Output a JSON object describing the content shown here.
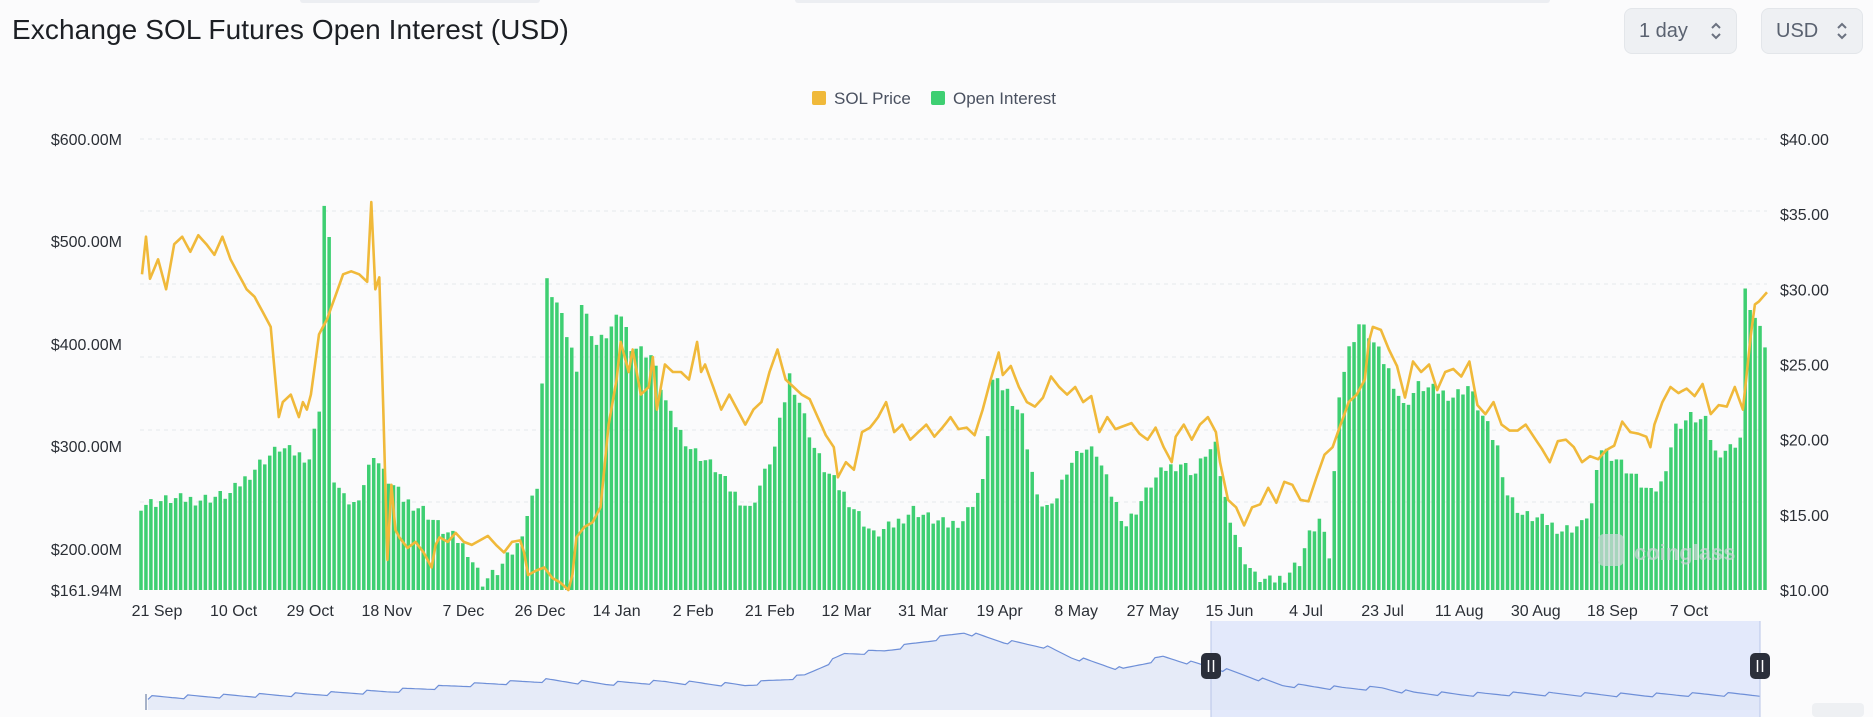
{
  "header": {
    "title": "Exchange SOL Futures Open Interest (USD)",
    "interval_select": {
      "value": "1 day"
    },
    "currency_select": {
      "value": "USD"
    }
  },
  "watermark": "coinglass",
  "colors": {
    "price": "#f0b93a",
    "open_interest": "#3ecf72",
    "grid": "#e6e8eb",
    "navigator_line": "#6e8fd8",
    "navigator_fill": "#dfe6f7",
    "navigator_selection": "#e3e9fb"
  },
  "chart_data": {
    "type": "bar+line",
    "legend": [
      "SOL Price",
      "Open Interest"
    ],
    "legend_position": "top-center",
    "grid": true,
    "x_ticks": [
      "21 Sep",
      "10 Oct",
      "29 Oct",
      "18 Nov",
      "7 Dec",
      "26 Dec",
      "14 Jan",
      "2 Feb",
      "21 Feb",
      "12 Mar",
      "31 Mar",
      "19 Apr",
      "8 May",
      "27 May",
      "15 Jun",
      "4 Jul",
      "23 Jul",
      "11 Aug",
      "30 Aug",
      "18 Sep",
      "7 Oct"
    ],
    "y_left": {
      "ticks": [
        "$600.00M",
        "$500.00M",
        "$400.00M",
        "$300.00M",
        "$200.00M",
        "$161.94M"
      ],
      "range": [
        161.94,
        600
      ]
    },
    "y_right": {
      "ticks": [
        "$40.00",
        "$35.00",
        "$30.00",
        "$25.00",
        "$20.00",
        "$15.00",
        "$10.00"
      ],
      "range": [
        10,
        40
      ]
    },
    "oi_anchors": [
      [
        0,
        245
      ],
      [
        6,
        250
      ],
      [
        12,
        250
      ],
      [
        18,
        255
      ],
      [
        24,
        285
      ],
      [
        28,
        300
      ],
      [
        31,
        295
      ],
      [
        34,
        290
      ],
      [
        36,
        340
      ],
      [
        37,
        535
      ],
      [
        38,
        500
      ],
      [
        39,
        270
      ],
      [
        41,
        250
      ],
      [
        43,
        245
      ],
      [
        45,
        265
      ],
      [
        47,
        295
      ],
      [
        49,
        275
      ],
      [
        53,
        250
      ],
      [
        57,
        240
      ],
      [
        61,
        220
      ],
      [
        64,
        210
      ],
      [
        66,
        200
      ],
      [
        69,
        170
      ],
      [
        72,
        180
      ],
      [
        76,
        205
      ],
      [
        80,
        265
      ],
      [
        82,
        460
      ],
      [
        84,
        440
      ],
      [
        88,
        380
      ],
      [
        89,
        440
      ],
      [
        92,
        400
      ],
      [
        94,
        410
      ],
      [
        97,
        430
      ],
      [
        99,
        400
      ],
      [
        103,
        390
      ],
      [
        107,
        330
      ],
      [
        111,
        300
      ],
      [
        116,
        280
      ],
      [
        119,
        260
      ],
      [
        123,
        240
      ],
      [
        126,
        275
      ],
      [
        128,
        300
      ],
      [
        131,
        370
      ],
      [
        133,
        345
      ],
      [
        136,
        300
      ],
      [
        138,
        280
      ],
      [
        142,
        255
      ],
      [
        145,
        235
      ],
      [
        148,
        215
      ],
      [
        152,
        225
      ],
      [
        156,
        240
      ],
      [
        160,
        230
      ],
      [
        163,
        225
      ],
      [
        166,
        230
      ],
      [
        170,
        265
      ],
      [
        172,
        365
      ],
      [
        175,
        355
      ],
      [
        178,
        330
      ],
      [
        181,
        250
      ],
      [
        184,
        240
      ],
      [
        187,
        280
      ],
      [
        190,
        300
      ],
      [
        193,
        295
      ],
      [
        196,
        255
      ],
      [
        199,
        225
      ],
      [
        201,
        240
      ],
      [
        204,
        265
      ],
      [
        207,
        280
      ],
      [
        210,
        285
      ],
      [
        213,
        275
      ],
      [
        215,
        295
      ],
      [
        217,
        300
      ],
      [
        219,
        250
      ],
      [
        222,
        200
      ],
      [
        225,
        175
      ],
      [
        228,
        170
      ],
      [
        231,
        175
      ],
      [
        234,
        190
      ],
      [
        236,
        215
      ],
      [
        238,
        230
      ],
      [
        240,
        195
      ],
      [
        242,
        355
      ],
      [
        244,
        395
      ],
      [
        246,
        420
      ],
      [
        248,
        410
      ],
      [
        252,
        375
      ],
      [
        255,
        340
      ],
      [
        258,
        360
      ],
      [
        262,
        355
      ],
      [
        265,
        350
      ],
      [
        268,
        360
      ],
      [
        271,
        330
      ],
      [
        274,
        300
      ],
      [
        276,
        255
      ],
      [
        279,
        235
      ],
      [
        283,
        230
      ],
      [
        287,
        220
      ],
      [
        291,
        225
      ],
      [
        293,
        245
      ],
      [
        295,
        300
      ],
      [
        298,
        290
      ],
      [
        302,
        270
      ],
      [
        305,
        255
      ],
      [
        307,
        265
      ],
      [
        310,
        320
      ],
      [
        313,
        330
      ],
      [
        316,
        325
      ],
      [
        318,
        295
      ],
      [
        321,
        300
      ],
      [
        323,
        310
      ],
      [
        324,
        450
      ],
      [
        326,
        425
      ],
      [
        328,
        400
      ]
    ],
    "price_anchors": [
      [
        0,
        31
      ],
      [
        1,
        33.5
      ],
      [
        2,
        30.7
      ],
      [
        4,
        32
      ],
      [
        6,
        30
      ],
      [
        8,
        33
      ],
      [
        10,
        33.5
      ],
      [
        12,
        32.5
      ],
      [
        14,
        33.6
      ],
      [
        16,
        33
      ],
      [
        18,
        32.3
      ],
      [
        20,
        33.5
      ],
      [
        22,
        32
      ],
      [
        24,
        31
      ],
      [
        26,
        30
      ],
      [
        28,
        29.5
      ],
      [
        30,
        28.5
      ],
      [
        32,
        27.5
      ],
      [
        34,
        21.5
      ],
      [
        35,
        22.5
      ],
      [
        37,
        23
      ],
      [
        39,
        21.5
      ],
      [
        40,
        22.5
      ],
      [
        41,
        22
      ],
      [
        42,
        23
      ],
      [
        44,
        27
      ],
      [
        46,
        28
      ],
      [
        48,
        29.5
      ],
      [
        50,
        31
      ],
      [
        52,
        31.2
      ],
      [
        54,
        31
      ],
      [
        56,
        30.5
      ],
      [
        57,
        35.8
      ],
      [
        58,
        30
      ],
      [
        59,
        30.8
      ],
      [
        60,
        22
      ],
      [
        61,
        12
      ],
      [
        62,
        17
      ],
      [
        63,
        14
      ],
      [
        64,
        13.5
      ],
      [
        66,
        12.8
      ],
      [
        68,
        13.2
      ],
      [
        70,
        12.5
      ],
      [
        72,
        11.5
      ],
      [
        73,
        13
      ],
      [
        74,
        13.5
      ],
      [
        76,
        13.2
      ],
      [
        78,
        13.8
      ],
      [
        80,
        13.2
      ],
      [
        82,
        13
      ],
      [
        84,
        13.3
      ],
      [
        86,
        13.6
      ],
      [
        88,
        13
      ],
      [
        90,
        12.5
      ],
      [
        92,
        13.2
      ],
      [
        94,
        13.3
      ],
      [
        95,
        12.5
      ],
      [
        96,
        11
      ],
      [
        98,
        11.3
      ],
      [
        100,
        11.5
      ],
      [
        102,
        10.8
      ],
      [
        104,
        10.5
      ],
      [
        106,
        10
      ],
      [
        107,
        11
      ],
      [
        108,
        13.5
      ],
      [
        110,
        14.2
      ],
      [
        112,
        14.5
      ],
      [
        114,
        15.5
      ],
      [
        116,
        21
      ],
      [
        118,
        24
      ],
      [
        119,
        26.5
      ],
      [
        121,
        24.5
      ],
      [
        122,
        26
      ],
      [
        124,
        23
      ],
      [
        126,
        23.5
      ],
      [
        127,
        25.5
      ],
      [
        128,
        22
      ],
      [
        130,
        25
      ],
      [
        132,
        24.5
      ],
      [
        134,
        24.5
      ],
      [
        136,
        24
      ],
      [
        138,
        26.5
      ],
      [
        139,
        24.5
      ],
      [
        140,
        25
      ],
      [
        142,
        23.5
      ],
      [
        144,
        22
      ],
      [
        146,
        23
      ],
      [
        148,
        22
      ],
      [
        150,
        21
      ],
      [
        152,
        22
      ],
      [
        154,
        22.5
      ],
      [
        156,
        24.5
      ],
      [
        158,
        26
      ],
      [
        160,
        24
      ],
      [
        162,
        23.5
      ],
      [
        164,
        23
      ],
      [
        166,
        22.7
      ],
      [
        168,
        21.5
      ],
      [
        170,
        20.3
      ],
      [
        172,
        19.5
      ],
      [
        173,
        17.5
      ],
      [
        175,
        18.5
      ],
      [
        177,
        18
      ],
      [
        179,
        20.5
      ],
      [
        181,
        20.8
      ],
      [
        183,
        21.5
      ],
      [
        185,
        22.5
      ],
      [
        187,
        20.5
      ],
      [
        189,
        21
      ],
      [
        191,
        20
      ],
      [
        193,
        20.5
      ],
      [
        195,
        21
      ],
      [
        197,
        20.2
      ],
      [
        199,
        20.8
      ],
      [
        201,
        21.5
      ],
      [
        203,
        20.7
      ],
      [
        205,
        20.8
      ],
      [
        207,
        20.3
      ],
      [
        209,
        22
      ],
      [
        211,
        24
      ],
      [
        213,
        25.8
      ],
      [
        214,
        24.3
      ],
      [
        216,
        24.9
      ],
      [
        218,
        23.5
      ],
      [
        220,
        22.5
      ],
      [
        222,
        22.2
      ],
      [
        224,
        22.8
      ],
      [
        226,
        24.2
      ],
      [
        228,
        23.5
      ],
      [
        230,
        23
      ],
      [
        232,
        23.5
      ],
      [
        234,
        22.5
      ],
      [
        236,
        22.9
      ],
      [
        238,
        20.5
      ],
      [
        240,
        21.5
      ],
      [
        242,
        20.7
      ],
      [
        244,
        20.9
      ],
      [
        246,
        21.1
      ],
      [
        248,
        20.4
      ],
      [
        250,
        20
      ],
      [
        252,
        20.8
      ],
      [
        254,
        19.5
      ],
      [
        256,
        18.5
      ],
      [
        257,
        20.2
      ],
      [
        259,
        21
      ],
      [
        261,
        20
      ],
      [
        263,
        21
      ],
      [
        265,
        21.5
      ],
      [
        267,
        20.5
      ],
      [
        268,
        18.5
      ],
      [
        270,
        16
      ],
      [
        272,
        15.5
      ],
      [
        274,
        14.3
      ],
      [
        276,
        15.5
      ],
      [
        278,
        15.7
      ],
      [
        280,
        16.8
      ],
      [
        282,
        15.8
      ],
      [
        284,
        17.2
      ],
      [
        286,
        17
      ],
      [
        288,
        16
      ],
      [
        290,
        15.9
      ],
      [
        292,
        17.5
      ],
      [
        294,
        19
      ],
      [
        296,
        19.5
      ],
      [
        298,
        21
      ],
      [
        300,
        22.5
      ],
      [
        302,
        23
      ],
      [
        304,
        24
      ],
      [
        305,
        26.5
      ],
      [
        306,
        27.5
      ],
      [
        308,
        27.3
      ],
      [
        310,
        26
      ],
      [
        312,
        24.9
      ],
      [
        314,
        22.8
      ],
      [
        316,
        25.2
      ],
      [
        318,
        24.5
      ],
      [
        320,
        25
      ],
      [
        322,
        23.3
      ],
      [
        324,
        24.5
      ],
      [
        326,
        24.7
      ],
      [
        328,
        24.2
      ],
      [
        330,
        25.2
      ],
      [
        332,
        22.3
      ],
      [
        334,
        21.7
      ],
      [
        336,
        22.5
      ],
      [
        338,
        21
      ],
      [
        340,
        20.6
      ],
      [
        342,
        20.6
      ],
      [
        344,
        21
      ],
      [
        346,
        20.2
      ],
      [
        348,
        19.4
      ],
      [
        350,
        18.5
      ],
      [
        352,
        19.9
      ],
      [
        354,
        20
      ],
      [
        356,
        19.5
      ],
      [
        358,
        18.5
      ],
      [
        360,
        18.9
      ],
      [
        362,
        18.7
      ],
      [
        364,
        19.3
      ],
      [
        366,
        19.6
      ],
      [
        368,
        21.2
      ],
      [
        370,
        20.5
      ],
      [
        372,
        20.4
      ],
      [
        373,
        20.3
      ],
      [
        374,
        20.2
      ],
      [
        375,
        19.5
      ],
      [
        376,
        21
      ],
      [
        378,
        22.5
      ],
      [
        380,
        23.5
      ],
      [
        382,
        23.1
      ],
      [
        384,
        23.4
      ],
      [
        386,
        22.9
      ],
      [
        388,
        23.7
      ],
      [
        390,
        21.7
      ],
      [
        392,
        22.3
      ],
      [
        394,
        22.2
      ],
      [
        396,
        23.5
      ],
      [
        398,
        22
      ],
      [
        399,
        24.5
      ],
      [
        400,
        27
      ],
      [
        401,
        29
      ],
      [
        402,
        29.2
      ],
      [
        403,
        29.5
      ],
      [
        404,
        29.8
      ]
    ]
  }
}
